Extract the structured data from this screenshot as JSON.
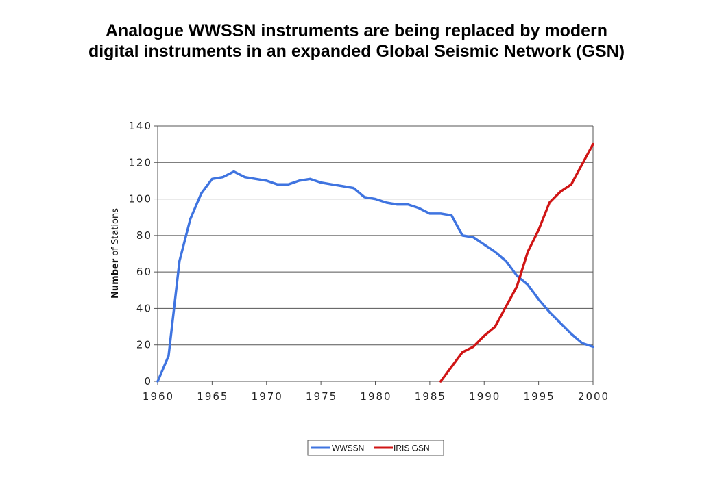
{
  "title_line1": "Analogue WWSSN instruments are being replaced by modern",
  "title_line2": "digital instruments in an expanded Global Seismic Network (GSN)",
  "chart_data": {
    "type": "line",
    "xlabel": "",
    "ylabel_bold": "Number",
    "ylabel_rest": "of Stations",
    "xlim": [
      1960,
      2000
    ],
    "ylim": [
      0,
      140
    ],
    "xticks": [
      1960,
      1965,
      1970,
      1975,
      1980,
      1985,
      1990,
      1995,
      2000
    ],
    "yticks": [
      0,
      20,
      40,
      60,
      80,
      100,
      120,
      140
    ],
    "grid": "horizontal",
    "legend_position": "bottom",
    "series": [
      {
        "name": "WWSSN",
        "color": "#3f74e0",
        "x": [
          1960,
          1961,
          1962,
          1963,
          1964,
          1965,
          1966,
          1967,
          1968,
          1969,
          1970,
          1971,
          1972,
          1973,
          1974,
          1975,
          1976,
          1977,
          1978,
          1979,
          1980,
          1981,
          1982,
          1983,
          1984,
          1985,
          1986,
          1987,
          1988,
          1989,
          1990,
          1991,
          1992,
          1993,
          1994,
          1995,
          1996,
          1997,
          1998,
          1999,
          2000
        ],
        "y": [
          0,
          14,
          66,
          89,
          103,
          111,
          112,
          115,
          112,
          111,
          110,
          108,
          108,
          110,
          111,
          109,
          108,
          107,
          106,
          101,
          100,
          98,
          97,
          97,
          95,
          92,
          92,
          91,
          80,
          79,
          75,
          71,
          66,
          58,
          53,
          45,
          38,
          32,
          26,
          21,
          19
        ]
      },
      {
        "name": "IRIS GSN",
        "color": "#d01515",
        "x": [
          1986,
          1987,
          1988,
          1989,
          1990,
          1991,
          1992,
          1993,
          1994,
          1995,
          1996,
          1997,
          1998,
          1999,
          2000
        ],
        "y": [
          0,
          8,
          16,
          19,
          25,
          30,
          41,
          52,
          71,
          83,
          98,
          104,
          108,
          119,
          130
        ]
      }
    ]
  }
}
